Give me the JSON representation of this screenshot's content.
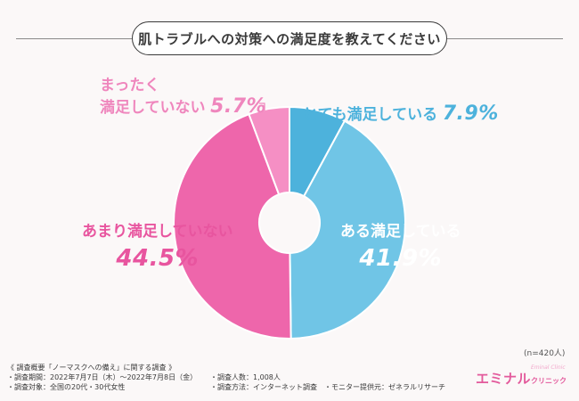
{
  "header": {
    "title": "肌トラブルへの対策への満足度を教えてください"
  },
  "chart_data": {
    "type": "pie",
    "title": "肌トラブルへの対策への満足度を教えてください",
    "slices": [
      {
        "label": "とても満足している",
        "value": 7.9,
        "pct_text": "7.9%",
        "color": "#4db2dc"
      },
      {
        "label": "ある満足している",
        "value": 41.9,
        "pct_text": "41.9%",
        "color": "#70c5e6"
      },
      {
        "label": "あまり満足していない",
        "value": 44.5,
        "pct_text": "44.5%",
        "color": "#ee66ab"
      },
      {
        "label": "まったく満足していない",
        "value": 5.7,
        "pct_text": "5.7%",
        "color": "#f58fc4"
      }
    ],
    "note": "(n=420人)"
  },
  "labels": {
    "mattaku_line1": "まったく",
    "mattaku_line2": "満足していない",
    "totemo": "とても満足している",
    "aru": "ある満足している",
    "amari": "あまり満足していない"
  },
  "footer": {
    "line1": "《 調査概要「ノーマスクへの備え」に関する調査 》",
    "line2": "・調査期間：2022年7月7日（木）〜2022年7月8日（金）",
    "line3": "・調査対象：全国の20代・30代女性",
    "line4": "・調査人数：1,008人",
    "line5": "・調査方法：インターネット調査　・モニター提供元：ゼネラルリサーチ"
  },
  "brand": {
    "main": "エミナル",
    "sub": "クリニック",
    "tag": "Eminal Clinic"
  }
}
